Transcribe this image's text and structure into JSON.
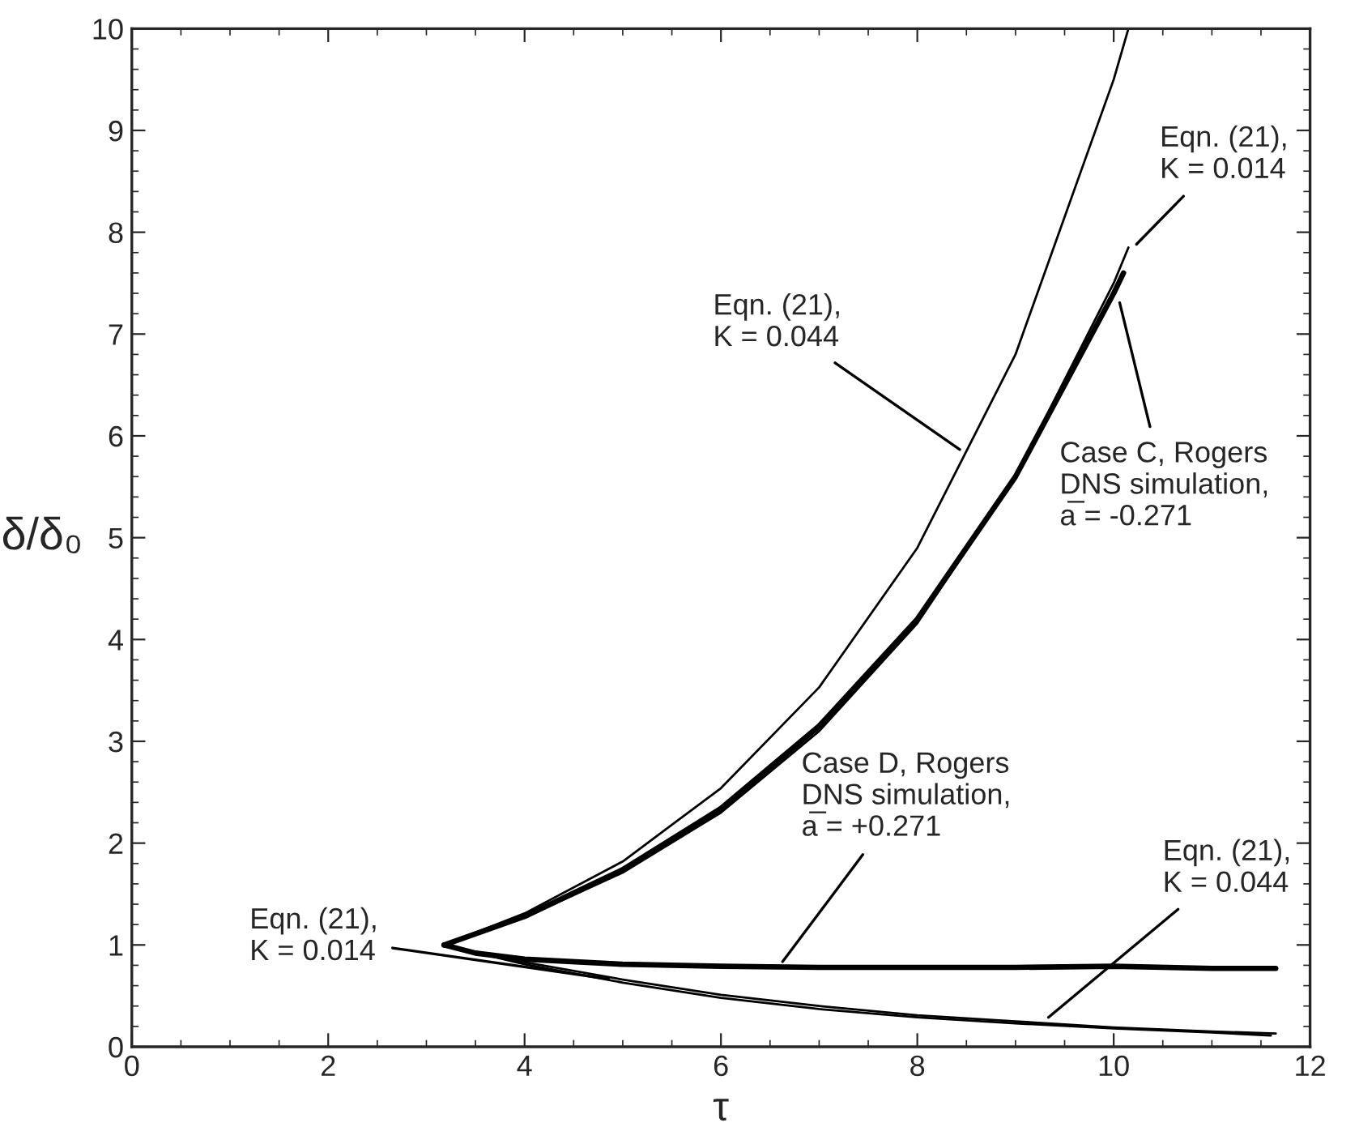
{
  "chart_data": {
    "type": "line",
    "xlabel": "τ",
    "ylabel": "δ/δ₀",
    "xlim": [
      0,
      12
    ],
    "ylim": [
      0,
      10
    ],
    "xticks": [
      0,
      2,
      4,
      6,
      8,
      10,
      12
    ],
    "yticks": [
      0,
      1,
      2,
      3,
      4,
      5,
      6,
      7,
      8,
      9,
      10
    ],
    "grid": false,
    "marker": "none",
    "line_style": "solid",
    "series": [
      {
        "color": "#000000",
        "x": [
          3.18,
          4,
          5,
          6,
          7,
          8,
          9,
          10,
          10.15
        ],
        "values": [
          1,
          1.31,
          1.82,
          2.54,
          3.53,
          4.9,
          6.8,
          9.5,
          10.0
        ]
      },
      {
        "color": "#000000",
        "x": [
          3.18,
          4,
          5,
          6,
          7,
          8,
          9,
          10,
          10.15
        ],
        "values": [
          1,
          1.27,
          1.71,
          2.3,
          3.1,
          4.16,
          5.6,
          7.5,
          7.85
        ]
      },
      {
        "color": "#000000",
        "x": [
          3.18,
          4,
          5,
          6,
          7,
          8,
          9,
          10,
          10.1
        ],
        "values": [
          1,
          1.28,
          1.74,
          2.34,
          3.15,
          4.2,
          5.6,
          7.4,
          7.6
        ]
      },
      {
        "color": "#000000",
        "x": [
          3.18,
          3.5,
          4,
          5,
          6,
          7,
          8,
          9,
          10,
          11,
          11.65
        ],
        "values": [
          1,
          0.92,
          0.86,
          0.81,
          0.79,
          0.78,
          0.78,
          0.78,
          0.79,
          0.77,
          0.77
        ]
      },
      {
        "color": "#000000",
        "x": [
          3.18,
          4,
          5,
          6,
          7,
          8,
          9,
          10,
          11,
          11.65
        ],
        "values": [
          1,
          0.83,
          0.66,
          0.51,
          0.4,
          0.31,
          0.25,
          0.19,
          0.15,
          0.13
        ]
      },
      {
        "color": "#000000",
        "x": [
          3.18,
          4,
          5,
          6,
          7,
          8,
          9,
          10,
          11,
          11.6
        ],
        "values": [
          1,
          0.81,
          0.63,
          0.48,
          0.37,
          0.29,
          0.23,
          0.18,
          0.14,
          0.11
        ]
      }
    ],
    "annotations": [
      {
        "text": "Eqn. (21),\nK = 0.044",
        "x": 8.47,
        "y": 5.84
      },
      {
        "text": "Eqn. (21),\nK = 0.014",
        "x": 10.2,
        "y": 7.85
      },
      {
        "text": "Case C, Rogers\nDNS simulation,\na̅ = -0.271",
        "x": 10.05,
        "y": 7.35
      },
      {
        "text": "Case D, Rogers\nDNS simulation,\na̅ = +0.271",
        "x": 6.6,
        "y": 0.8
      },
      {
        "text": "Eqn. (21),\nK = 0.014",
        "x": 4.9,
        "y": 0.66
      },
      {
        "text": "Eqn. (21),\nK = 0.044",
        "x": 9.3,
        "y": 0.26
      }
    ]
  }
}
